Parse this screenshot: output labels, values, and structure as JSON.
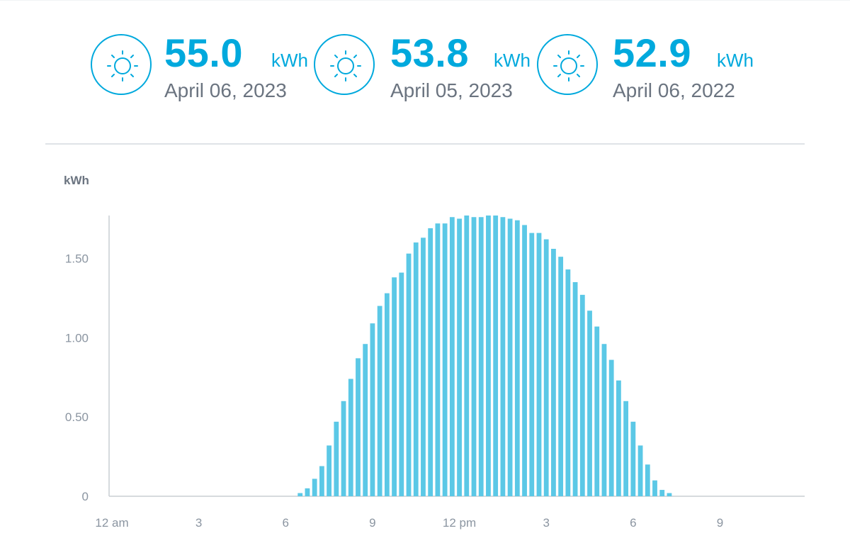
{
  "summary": [
    {
      "value": "55.0",
      "unit": "kWh",
      "date": "April 06, 2023",
      "icon": "sun-icon"
    },
    {
      "value": "53.8",
      "unit": "kWh",
      "date": "April 05, 2023",
      "icon": "sun-icon"
    },
    {
      "value": "52.9",
      "unit": "kWh",
      "date": "April 06, 2022",
      "icon": "sun-icon"
    }
  ],
  "colors": {
    "accent": "#00a9dd",
    "bar": "#5bc8e6",
    "text_muted": "#6b7480",
    "tick": "#8b95a1",
    "axis": "#c9ced4"
  },
  "chart_data": {
    "type": "bar",
    "ylabel": "kWh",
    "ylim": [
      0,
      1.77
    ],
    "yticks": [
      {
        "value": 0,
        "label": "0"
      },
      {
        "value": 0.5,
        "label": "0.50"
      },
      {
        "value": 1.0,
        "label": "1.00"
      },
      {
        "value": 1.5,
        "label": "1.50"
      }
    ],
    "xticks": [
      {
        "hour": 0,
        "label": "12 am"
      },
      {
        "hour": 3,
        "label": "3"
      },
      {
        "hour": 6,
        "label": "6"
      },
      {
        "hour": 9,
        "label": "9"
      },
      {
        "hour": 12,
        "label": "12 pm"
      },
      {
        "hour": 15,
        "label": "3"
      },
      {
        "hour": 18,
        "label": "6"
      },
      {
        "hour": 21,
        "label": "9"
      }
    ],
    "interval_minutes": 15,
    "grid": false,
    "values": [
      0,
      0,
      0,
      0,
      0,
      0,
      0,
      0,
      0,
      0,
      0,
      0,
      0,
      0,
      0,
      0,
      0,
      0,
      0,
      0,
      0,
      0,
      0,
      0,
      0,
      0,
      0.02,
      0.05,
      0.11,
      0.19,
      0.32,
      0.47,
      0.6,
      0.74,
      0.87,
      0.96,
      1.09,
      1.2,
      1.28,
      1.38,
      1.41,
      1.53,
      1.6,
      1.63,
      1.69,
      1.72,
      1.72,
      1.76,
      1.75,
      1.77,
      1.76,
      1.76,
      1.77,
      1.77,
      1.76,
      1.75,
      1.74,
      1.71,
      1.66,
      1.66,
      1.62,
      1.56,
      1.51,
      1.43,
      1.35,
      1.27,
      1.17,
      1.07,
      0.96,
      0.86,
      0.73,
      0.6,
      0.47,
      0.32,
      0.2,
      0.1,
      0.04,
      0.02,
      0,
      0,
      0,
      0,
      0,
      0,
      0,
      0,
      0,
      0,
      0,
      0,
      0,
      0,
      0,
      0,
      0,
      0,
      0,
      0,
      0,
      0
    ]
  }
}
